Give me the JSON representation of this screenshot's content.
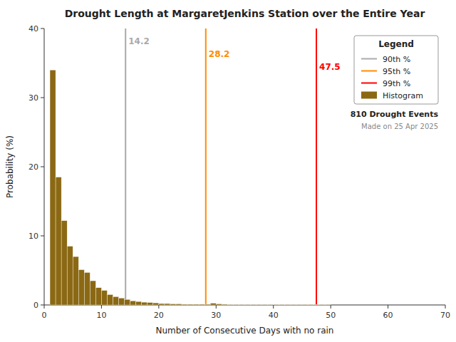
{
  "chart_data": {
    "type": "histogram",
    "title": "Drought Length at MargaretJenkins Station over the Entire Year",
    "x_label": "Number of Consecutive Days with no rain",
    "y_label": "Probability (%)",
    "xlim": [
      0,
      70
    ],
    "ylim": [
      0,
      40
    ],
    "xticks": [
      0,
      10,
      20,
      30,
      40,
      50,
      60,
      70
    ],
    "yticks": [
      0,
      10,
      20,
      30,
      40
    ],
    "grid": false,
    "legend": "upper right",
    "legend_title": "Legend",
    "bins": [
      1,
      2,
      3,
      4,
      5,
      6,
      7,
      8,
      9,
      10,
      11,
      12,
      13,
      14,
      15,
      16,
      17,
      18,
      19,
      20,
      21,
      22,
      23,
      24,
      25,
      26,
      27,
      28,
      29,
      30,
      31,
      32,
      33,
      34,
      35,
      36,
      37,
      38,
      39,
      40,
      41,
      42,
      43,
      44,
      45,
      46,
      47,
      48,
      49,
      50,
      51,
      52,
      53,
      54,
      55,
      56,
      57,
      58,
      59,
      60,
      61
    ],
    "series": [
      {
        "name": "90th %",
        "type": "vline",
        "color": "#aaaaaa",
        "x": 14.2,
        "data_labels": true
      },
      {
        "name": "95th %",
        "type": "vline",
        "color": "#ff8c00",
        "x": 28.2,
        "data_labels": true
      },
      {
        "name": "99th %",
        "type": "vline",
        "color": "#ff0000",
        "x": 47.5,
        "data_labels": true
      },
      {
        "name": "Histogram",
        "type": "histogram",
        "color": "#8B6914",
        "values": [
          34.0,
          18.5,
          12.2,
          8.5,
          7.0,
          5.1,
          4.7,
          3.5,
          2.5,
          2.1,
          1.5,
          1.2,
          1.0,
          0.8,
          0.6,
          0.5,
          0.4,
          0.35,
          0.3,
          0.2,
          0.2,
          0.15,
          0.15,
          0.1,
          0.1,
          0.1,
          0.1,
          0.1,
          0.25,
          0.15,
          0.1,
          0.05,
          0.05,
          0.05,
          0.05,
          0.05,
          0.05,
          0.05,
          0.05,
          0.05,
          0.05,
          0.05,
          0.05,
          0.05,
          0.05,
          0.05,
          0.05,
          0.05,
          0.05,
          0.0,
          0.0,
          0.0,
          0.0,
          0.0,
          0.0,
          0.0,
          0.0,
          0.0,
          0.0,
          0.0
        ]
      }
    ],
    "annotations": [
      {
        "text": "810 Drought Events"
      },
      {
        "text": "Made on 25 Apr 2025"
      }
    ]
  }
}
